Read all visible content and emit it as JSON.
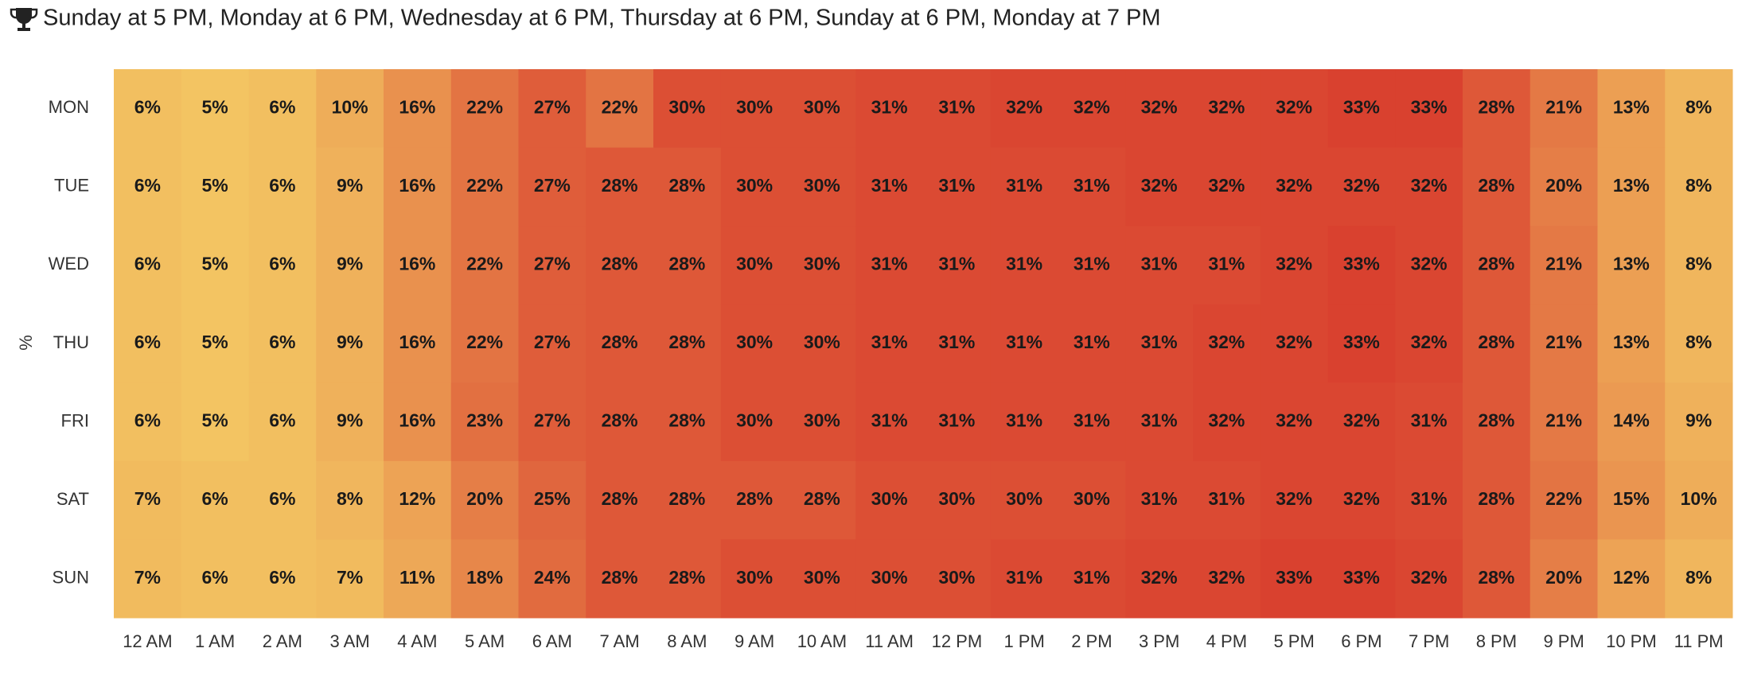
{
  "chart_data": {
    "type": "heatmap",
    "title": "Sunday at 5 PM, Monday at 6 PM, Wednesday at 6 PM, Thursday at 6 PM, Sunday at 6 PM, Monday at 7 PM",
    "y_label": "%",
    "rows": [
      "MON",
      "TUE",
      "WED",
      "THU",
      "FRI",
      "SAT",
      "SUN"
    ],
    "columns": [
      "12 AM",
      "1 AM",
      "2 AM",
      "3 AM",
      "4 AM",
      "5 AM",
      "6 AM",
      "7 AM",
      "8 AM",
      "9 AM",
      "10 AM",
      "11 AM",
      "12 PM",
      "1 PM",
      "2 PM",
      "3 PM",
      "4 PM",
      "5 PM",
      "6 PM",
      "7 PM",
      "8 PM",
      "9 PM",
      "10 PM",
      "11 PM"
    ],
    "colorscale": [
      "#f3c462",
      "#d9412f"
    ],
    "values": [
      [
        6,
        5,
        6,
        10,
        16,
        22,
        27,
        22,
        30,
        30,
        30,
        31,
        31,
        32,
        32,
        32,
        32,
        32,
        33,
        33,
        28,
        21,
        13,
        8
      ],
      [
        6,
        5,
        6,
        9,
        16,
        22,
        27,
        28,
        28,
        30,
        30,
        31,
        31,
        31,
        31,
        32,
        32,
        32,
        32,
        32,
        28,
        20,
        13,
        8
      ],
      [
        6,
        5,
        6,
        9,
        16,
        22,
        27,
        28,
        28,
        30,
        30,
        31,
        31,
        31,
        31,
        31,
        31,
        32,
        33,
        32,
        28,
        21,
        13,
        8
      ],
      [
        6,
        5,
        6,
        9,
        16,
        22,
        27,
        28,
        28,
        30,
        30,
        31,
        31,
        31,
        31,
        31,
        32,
        32,
        33,
        32,
        28,
        21,
        13,
        8
      ],
      [
        6,
        5,
        6,
        9,
        16,
        23,
        27,
        28,
        28,
        30,
        30,
        31,
        31,
        31,
        31,
        31,
        32,
        32,
        32,
        31,
        28,
        21,
        14,
        9
      ],
      [
        7,
        6,
        6,
        8,
        12,
        20,
        25,
        28,
        28,
        28,
        28,
        30,
        30,
        30,
        30,
        31,
        31,
        32,
        32,
        31,
        28,
        22,
        15,
        10
      ],
      [
        7,
        6,
        6,
        7,
        11,
        18,
        24,
        28,
        28,
        30,
        30,
        30,
        30,
        31,
        31,
        32,
        32,
        33,
        33,
        32,
        28,
        20,
        12,
        8
      ]
    ],
    "value_labels": [
      [
        "6%",
        "5%",
        "6%",
        "10%",
        "16%",
        "22%",
        "27%",
        "22%",
        "30%",
        "30%",
        "30%",
        "31%",
        "31%",
        "32%",
        "32%",
        "32%",
        "32%",
        "32%",
        "33%",
        "33%",
        "28%",
        "21%",
        "13%",
        "8%"
      ],
      [
        "6%",
        "5%",
        "6%",
        "9%",
        "16%",
        "22%",
        "27%",
        "28%",
        "28%",
        "30%",
        "30%",
        "31%",
        "31%",
        "31%",
        "31%",
        "32%",
        "32%",
        "32%",
        "32%",
        "32%",
        "28%",
        "20%",
        "13%",
        "8%"
      ],
      [
        "6%",
        "5%",
        "6%",
        "9%",
        "16%",
        "22%",
        "27%",
        "28%",
        "28%",
        "30%",
        "30%",
        "31%",
        "31%",
        "31%",
        "31%",
        "31%",
        "31%",
        "32%",
        "33%",
        "32%",
        "28%",
        "21%",
        "13%",
        "8%"
      ],
      [
        "6%",
        "5%",
        "6%",
        "9%",
        "16%",
        "22%",
        "27%",
        "28%",
        "28%",
        "30%",
        "30%",
        "31%",
        "31%",
        "31%",
        "31%",
        "31%",
        "32%",
        "32%",
        "33%",
        "32%",
        "28%",
        "21%",
        "13%",
        "8%"
      ],
      [
        "6%",
        "5%",
        "6%",
        "9%",
        "16%",
        "23%",
        "27%",
        "28%",
        "28%",
        "30%",
        "30%",
        "31%",
        "31%",
        "31%",
        "31%",
        "31%",
        "32%",
        "32%",
        "32%",
        "31%",
        "28%",
        "21%",
        "14%",
        "9%"
      ],
      [
        "7%",
        "6%",
        "6%",
        "8%",
        "12%",
        "20%",
        "25%",
        "28%",
        "28%",
        "28%",
        "28%",
        "30%",
        "30%",
        "30%",
        "30%",
        "31%",
        "31%",
        "32%",
        "32%",
        "31%",
        "28%",
        "22%",
        "15%",
        "10%"
      ],
      [
        "7%",
        "6%",
        "6%",
        "7%",
        "11%",
        "18%",
        "24%",
        "28%",
        "28%",
        "30%",
        "30%",
        "30%",
        "30%",
        "31%",
        "31%",
        "32%",
        "32%",
        "33%",
        "33%",
        "32%",
        "28%",
        "20%",
        "12%",
        "8%"
      ]
    ]
  }
}
